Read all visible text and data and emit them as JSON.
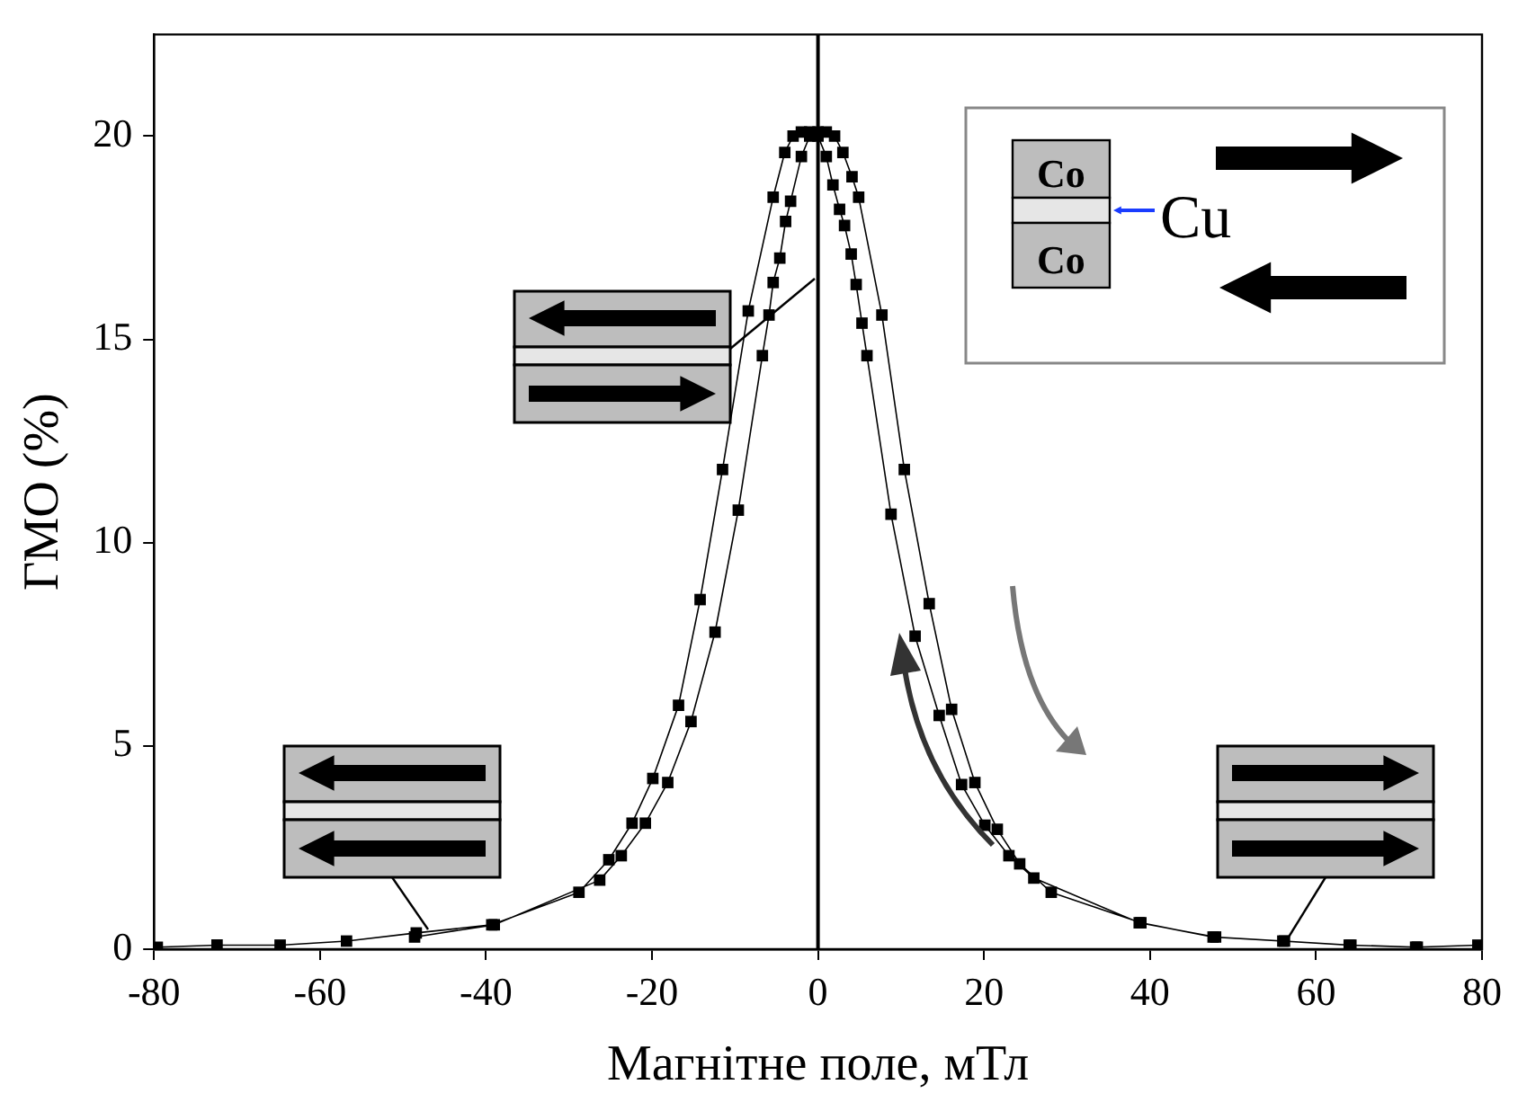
{
  "chart_data": {
    "type": "line",
    "xlabel": "Магнітне поле, мТл",
    "ylabel": "ГМО (%)",
    "xlim": [
      -80,
      80
    ],
    "xticks": [
      -80,
      -60,
      -40,
      -20,
      0,
      20,
      40,
      60,
      80
    ],
    "ylim": [
      0,
      22.5
    ],
    "yticks": [
      0,
      5,
      10,
      15,
      20
    ],
    "grid": false,
    "legend": false,
    "marker": "square",
    "line_style": "solid",
    "series": [
      {
        "color": "#000000",
        "x": [
          -79.6,
          -72.4,
          -64.8,
          -56.8,
          -48.4,
          -39.3,
          -28.8,
          -25.2,
          -22.4,
          -19.9,
          -16.8,
          -14.2,
          -11.5,
          -8.4,
          -5.4,
          -4,
          -3,
          -2,
          -1,
          0,
          1,
          1.8,
          2.6,
          3.2,
          4.0,
          4.6,
          5.3,
          5.9,
          8.8,
          11.7,
          14.6,
          17.3,
          20.1,
          23.0,
          26.0,
          38.7,
          47.9,
          56.2,
          64.2,
          72.2,
          79.5,
          72.0,
          64.0,
          56.0,
          47.6,
          38.9,
          28.1,
          24.3,
          21.6,
          18.9,
          16.1,
          13.4,
          10.4,
          7.7,
          4.9,
          4.1,
          3,
          2,
          1,
          0,
          -1,
          -2,
          -3.3,
          -3.9,
          -4.6,
          -5.4,
          -5.9,
          -6.7,
          -9.6,
          -12.4,
          -15.3,
          -18.1,
          -20.8,
          -23.7,
          -26.3,
          -39.0,
          -48.6
        ],
        "values": [
          0.05,
          0.1,
          0.1,
          0.2,
          0.4,
          0.6,
          1.4,
          2.2,
          3.1,
          4.2,
          6.0,
          8.6,
          11.8,
          15.7,
          18.5,
          19.6,
          20.0,
          20.1,
          20.1,
          20.0,
          19.5,
          18.8,
          18.2,
          17.8,
          17.1,
          16.35,
          15.4,
          14.6,
          10.7,
          7.7,
          5.75,
          4.05,
          3.05,
          2.3,
          1.75,
          0.65,
          0.3,
          0.2,
          0.1,
          0.05,
          0.1,
          0.05,
          0.1,
          0.2,
          0.3,
          0.65,
          1.4,
          2.1,
          2.95,
          4.1,
          5.9,
          8.5,
          11.8,
          15.6,
          18.5,
          19.0,
          19.6,
          20.0,
          20.1,
          20.1,
          20.0,
          19.5,
          18.4,
          17.9,
          17.0,
          16.4,
          15.6,
          14.6,
          10.8,
          7.8,
          5.6,
          4.1,
          3.1,
          2.3,
          1.7,
          0.6,
          0.3
        ]
      }
    ],
    "ref_lines": [
      {
        "axis": "x",
        "value": 0,
        "color": "#000000"
      }
    ],
    "annotations": [
      "Co",
      "Co",
      "Cu"
    ]
  }
}
